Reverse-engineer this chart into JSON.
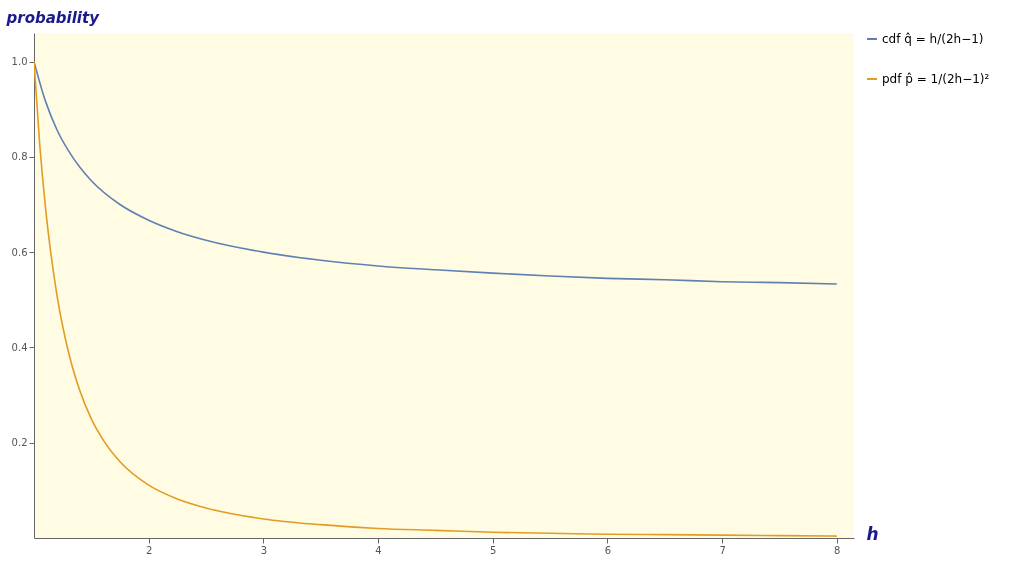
{
  "chart_data": {
    "type": "line",
    "xlabel": "h",
    "ylabel": "probability",
    "xlim": [
      1,
      8.15
    ],
    "ylim": [
      0,
      1.06
    ],
    "xticks": [
      2,
      3,
      4,
      5,
      6,
      7,
      8
    ],
    "yticks": [
      0.2,
      0.4,
      0.6,
      0.8,
      {
        "value": 1,
        "label": "1.0"
      }
    ],
    "grid": false,
    "legend": "right",
    "marker": "none",
    "line_style": "solid",
    "series": [
      {
        "name": "cdf q̂ = h/(2h−1)",
        "color": "#5e81b5",
        "x": [
          1,
          1.1,
          1.2,
          1.3,
          1.4,
          1.5,
          1.75,
          2,
          2.25,
          2.5,
          3,
          3.5,
          4,
          4.5,
          5,
          5.5,
          6,
          6.5,
          7,
          7.5,
          8
        ],
        "values": [
          1,
          0.917,
          0.857,
          0.813,
          0.778,
          0.75,
          0.7,
          0.667,
          0.643,
          0.625,
          0.6,
          0.583,
          0.571,
          0.563,
          0.556,
          0.55,
          0.545,
          0.542,
          0.538,
          0.536,
          0.533
        ]
      },
      {
        "name": "pdf p̂ = 1/(2h−1)²",
        "color": "#e19c24",
        "x": [
          1,
          1.05,
          1.1,
          1.15,
          1.2,
          1.3,
          1.4,
          1.5,
          1.6,
          1.75,
          2,
          2.25,
          2.5,
          3,
          3.5,
          4,
          4.5,
          5,
          5.5,
          6,
          6.5,
          7,
          7.5,
          8
        ],
        "values": [
          1,
          0.826,
          0.694,
          0.592,
          0.51,
          0.391,
          0.309,
          0.25,
          0.207,
          0.16,
          0.111,
          0.082,
          0.063,
          0.04,
          0.028,
          0.02,
          0.016,
          0.012,
          0.01,
          0.008,
          0.007,
          0.006,
          0.005,
          0.004
        ]
      }
    ]
  }
}
